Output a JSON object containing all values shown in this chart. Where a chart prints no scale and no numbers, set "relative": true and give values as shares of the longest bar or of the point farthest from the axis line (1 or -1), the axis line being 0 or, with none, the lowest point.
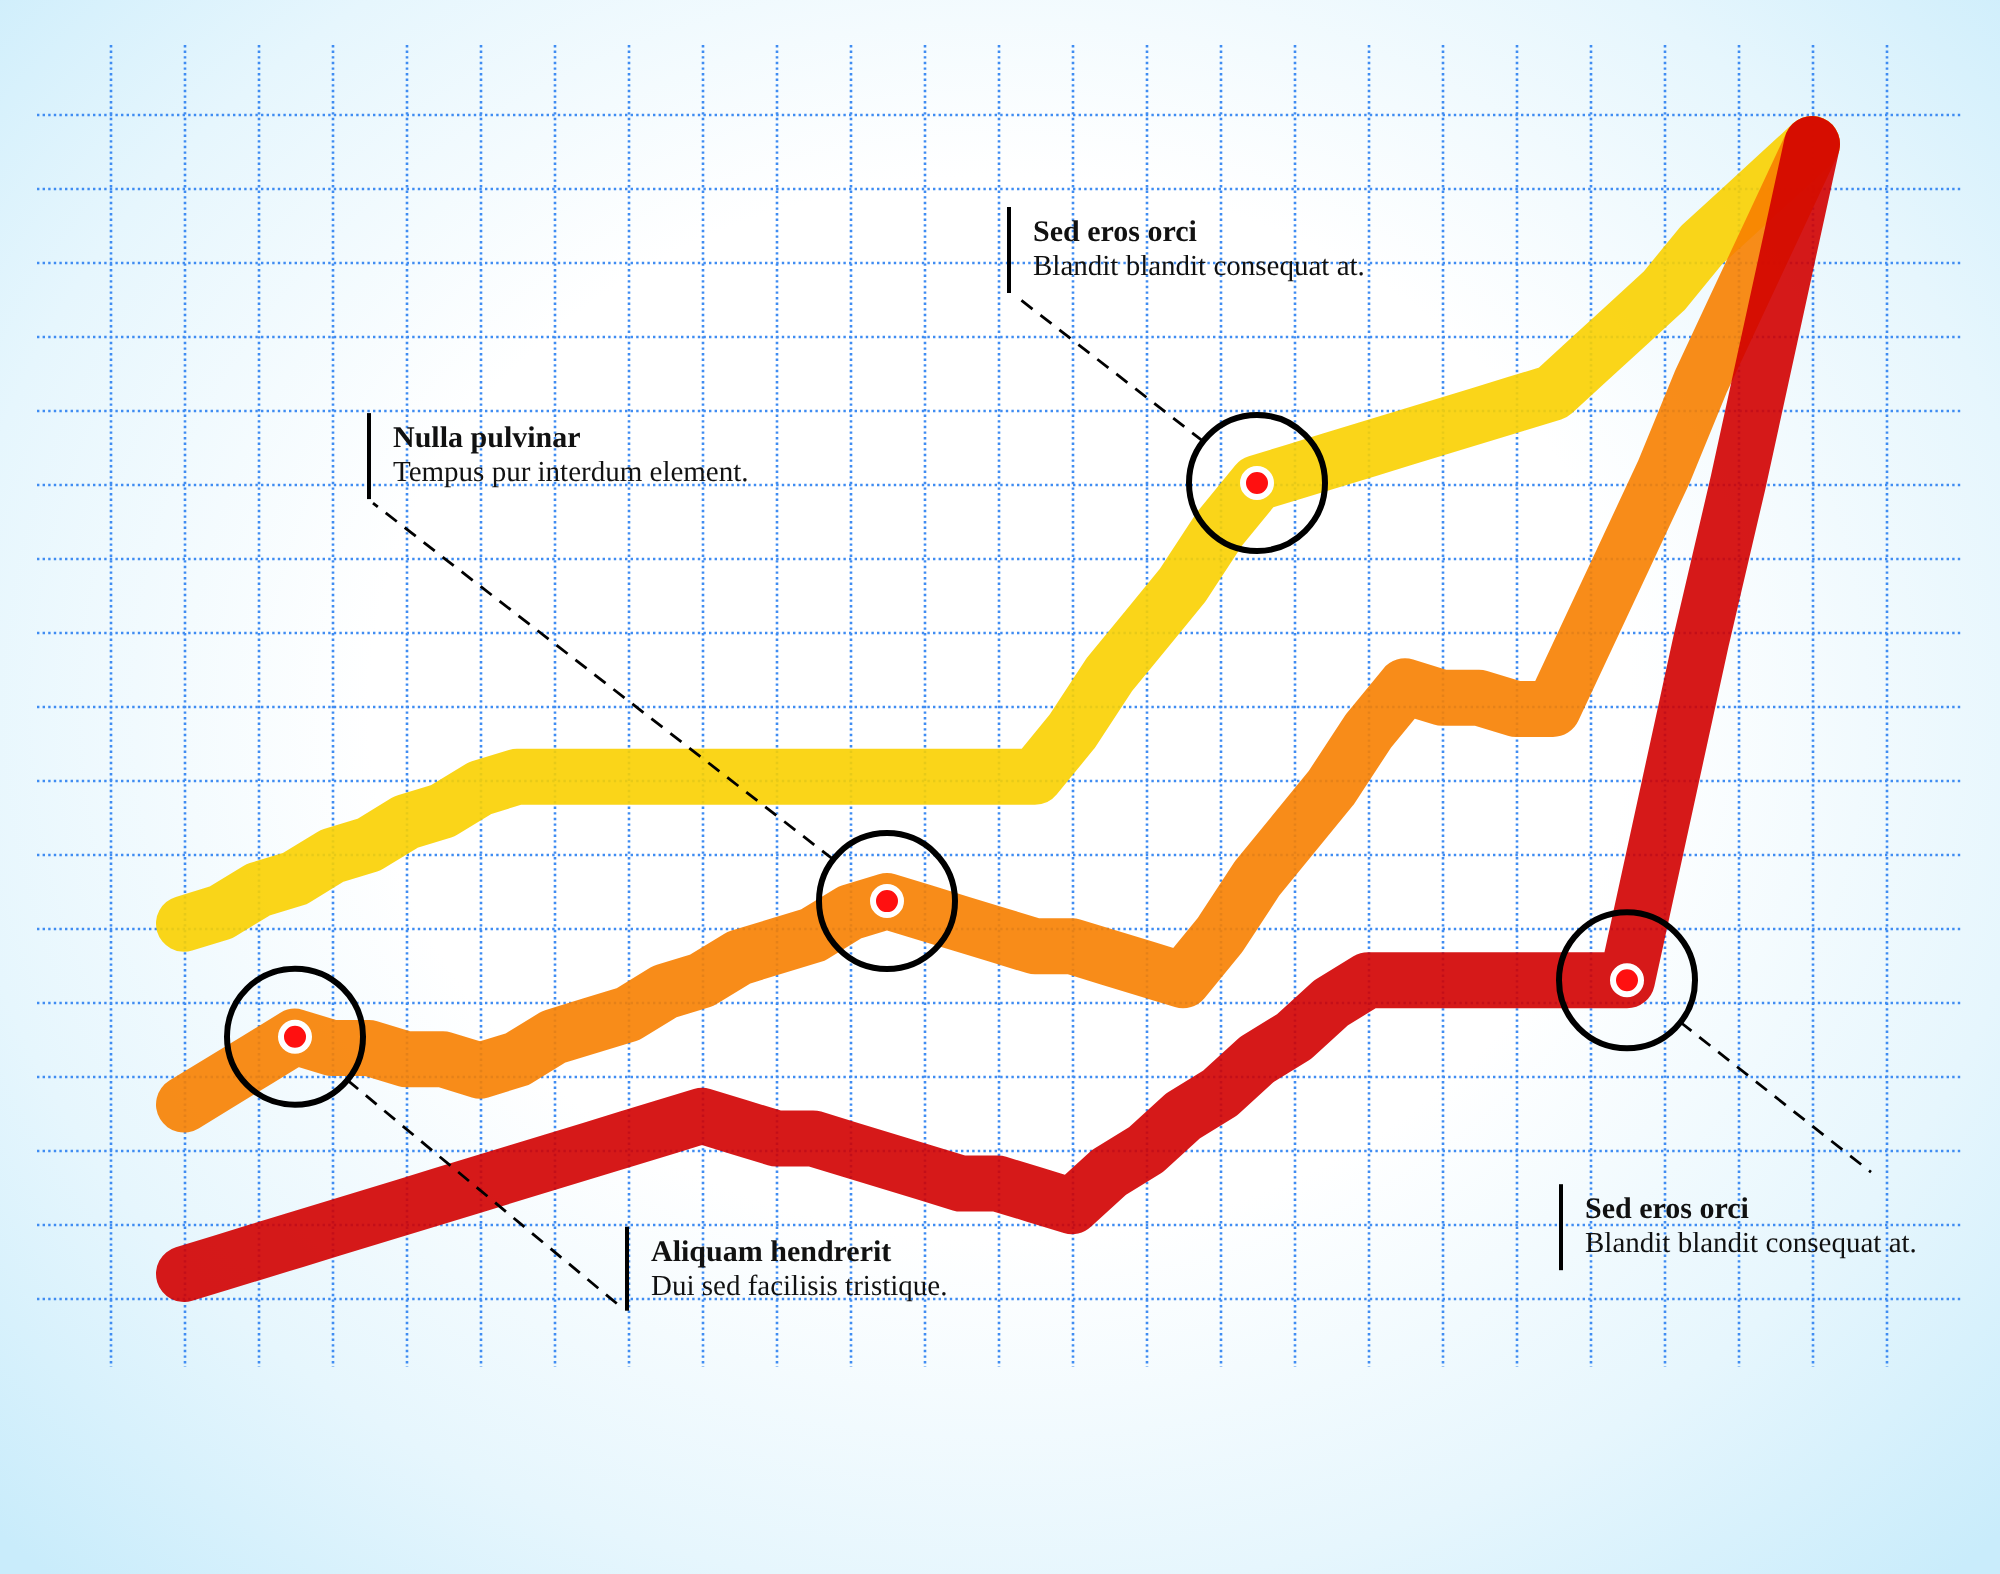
{
  "chart_data": {
    "type": "line",
    "relative": true,
    "grid": true,
    "categories": [
      null,
      null,
      null,
      null,
      null,
      null,
      null,
      null,
      null,
      null,
      null,
      null,
      null,
      null,
      null,
      null,
      null,
      null,
      null,
      null,
      null,
      null,
      null,
      null,
      null,
      null,
      null,
      null,
      null,
      null,
      null,
      null,
      null,
      null,
      null,
      null,
      null,
      null,
      null,
      null,
      null,
      null,
      null,
      null,
      null
    ],
    "series": [
      {
        "color": "#f9d000",
        "values": [
          0.31,
          0.32,
          0.34,
          0.35,
          0.37,
          0.38,
          0.4,
          0.41,
          0.43,
          0.44,
          0.44,
          0.44,
          0.44,
          0.44,
          0.44,
          0.44,
          0.44,
          0.44,
          0.44,
          0.44,
          0.44,
          0.44,
          0.44,
          0.44,
          0.48,
          0.53,
          0.57,
          0.61,
          0.66,
          0.7,
          0.71,
          0.72,
          0.73,
          0.74,
          0.75,
          0.76,
          0.77,
          0.78,
          0.81,
          0.84,
          0.87,
          0.91,
          0.94,
          0.97,
          1
        ]
      },
      {
        "color": "#f78000",
        "values": [
          0.15,
          0.17,
          0.19,
          0.21,
          0.2,
          0.2,
          0.19,
          0.19,
          0.18,
          0.19,
          0.21,
          0.22,
          0.23,
          0.25,
          0.26,
          0.28,
          0.29,
          0.3,
          0.32,
          0.33,
          0.32,
          0.31,
          0.3,
          0.29,
          0.29,
          0.28,
          0.27,
          0.26,
          0.3,
          0.35,
          0.39,
          0.43,
          0.48,
          0.52,
          0.51,
          0.51,
          0.5,
          0.5,
          0.57,
          0.64,
          0.71,
          0.79,
          0.86,
          0.93,
          1
        ]
      },
      {
        "color": "#d10000",
        "values": [
          0,
          0.01,
          0.02,
          0.03,
          0.04,
          0.05,
          0.06,
          0.07,
          0.08,
          0.09,
          0.1,
          0.11,
          0.12,
          0.13,
          0.14,
          0.13,
          0.12,
          0.12,
          0.11,
          0.1,
          0.09,
          0.08,
          0.08,
          0.07,
          0.06,
          0.09,
          0.11,
          0.14,
          0.16,
          0.19,
          0.21,
          0.24,
          0.26,
          0.26,
          0.26,
          0.26,
          0.26,
          0.26,
          0.26,
          0.26,
          0.41,
          0.56,
          0.7,
          0.85,
          1
        ]
      }
    ],
    "annotations": [
      "Sed eros orci\nBlandit blandit consequat at.",
      "Nulla pulvinar\nTempus pur interdum element.",
      "Sed eros orci\nBlandit blandit consequat at.",
      "Aliquam hendrerit\nDui sed facilisis tristique."
    ]
  }
}
